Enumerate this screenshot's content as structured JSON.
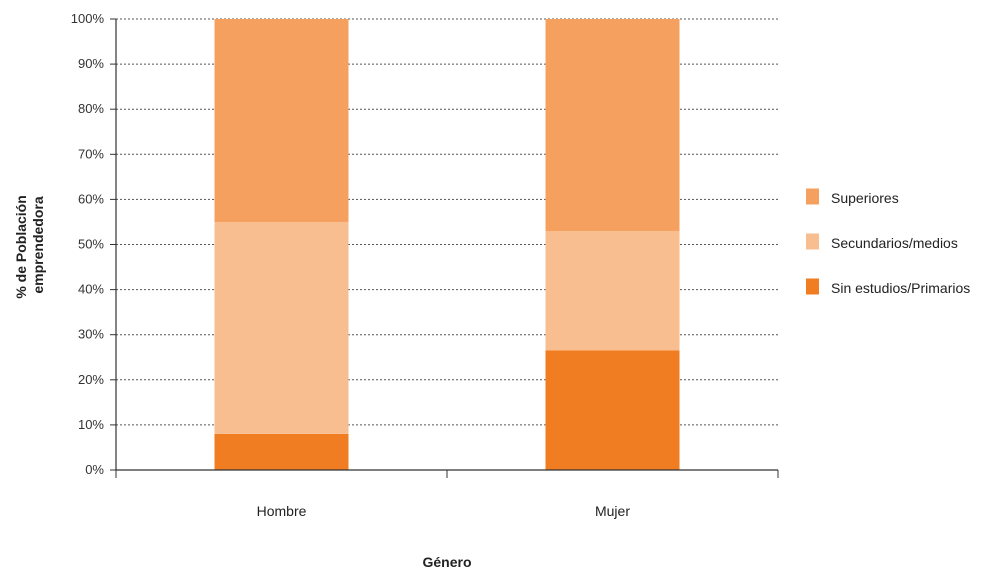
{
  "chart_data": {
    "type": "bar",
    "stacked": true,
    "categories": [
      "Hombre",
      "Mujer"
    ],
    "series": [
      {
        "name": "Sin estudios/Primarios",
        "color": "#f07d22",
        "values": [
          8,
          26.5
        ]
      },
      {
        "name": "Secundarios/medios",
        "color": "#f9be90",
        "values": [
          47,
          26.5
        ]
      },
      {
        "name": "Superiores",
        "color": "#f5a05e",
        "values": [
          45,
          47
        ]
      }
    ],
    "xlabel": "Género",
    "ylabel": "% de Población emprendedora",
    "ylabel_lines": [
      "% de Población",
      "emprendedora"
    ],
    "y_ticks": [
      0,
      10,
      20,
      30,
      40,
      50,
      60,
      70,
      80,
      90,
      100
    ],
    "y_tick_labels": [
      "0%",
      "10%",
      "20%",
      "30%",
      "40%",
      "50%",
      "60%",
      "70%",
      "80%",
      "90%",
      "100%"
    ],
    "ylim": [
      0,
      100
    ],
    "grid": true,
    "legend_position": "right",
    "legend_order": [
      "Superiores",
      "Secundarios/medios",
      "Sin estudios/Primarios"
    ]
  }
}
